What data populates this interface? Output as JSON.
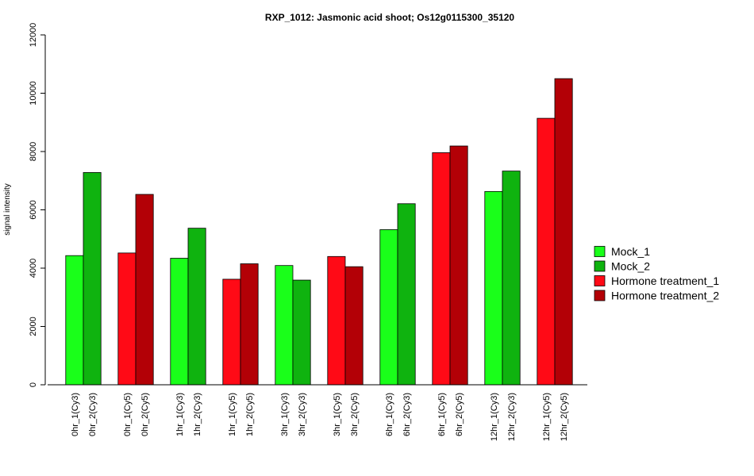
{
  "chart_data": {
    "type": "bar",
    "title": "RXP_1012: Jasmonic acid shoot; Os12g0115300_35120",
    "xlabel": "",
    "ylabel": "signal intensity",
    "ylim": [
      0,
      12000
    ],
    "yticks": [
      0,
      2000,
      4000,
      6000,
      8000,
      10000,
      12000
    ],
    "grid": false,
    "legend_position": "right",
    "bars": [
      {
        "label": "0hr_1(Cy3)",
        "value": 4430,
        "series": "Mock_1"
      },
      {
        "label": "0hr_2(Cy3)",
        "value": 7280,
        "series": "Mock_2"
      },
      {
        "label": "0hr_1(Cy5)",
        "value": 4520,
        "series": "Hormone treatment_1"
      },
      {
        "label": "0hr_2(Cy5)",
        "value": 6530,
        "series": "Hormone treatment_2"
      },
      {
        "label": "1hr_1(Cy3)",
        "value": 4340,
        "series": "Mock_1"
      },
      {
        "label": "1hr_2(Cy3)",
        "value": 5370,
        "series": "Mock_2"
      },
      {
        "label": "1hr_1(Cy5)",
        "value": 3620,
        "series": "Hormone treatment_1"
      },
      {
        "label": "1hr_2(Cy5)",
        "value": 4150,
        "series": "Hormone treatment_2"
      },
      {
        "label": "3hr_1(Cy3)",
        "value": 4090,
        "series": "Mock_1"
      },
      {
        "label": "3hr_2(Cy3)",
        "value": 3590,
        "series": "Mock_2"
      },
      {
        "label": "3hr_1(Cy5)",
        "value": 4400,
        "series": "Hormone treatment_1"
      },
      {
        "label": "3hr_2(Cy5)",
        "value": 4050,
        "series": "Hormone treatment_2"
      },
      {
        "label": "6hr_1(Cy3)",
        "value": 5320,
        "series": "Mock_1"
      },
      {
        "label": "6hr_2(Cy3)",
        "value": 6210,
        "series": "Mock_2"
      },
      {
        "label": "6hr_1(Cy5)",
        "value": 7960,
        "series": "Hormone treatment_1"
      },
      {
        "label": "6hr_2(Cy5)",
        "value": 8190,
        "series": "Hormone treatment_2"
      },
      {
        "label": "12hr_1(Cy3)",
        "value": 6630,
        "series": "Mock_1"
      },
      {
        "label": "12hr_2(Cy3)",
        "value": 7330,
        "series": "Mock_2"
      },
      {
        "label": "12hr_1(Cy5)",
        "value": 9140,
        "series": "Hormone treatment_1"
      },
      {
        "label": "12hr_2(Cy5)",
        "value": 10500,
        "series": "Hormone treatment_2"
      }
    ],
    "legend": [
      {
        "name": "Mock_1",
        "color": "#1aff1a"
      },
      {
        "name": "Mock_2",
        "color": "#0fb30f"
      },
      {
        "name": "Hormone treatment_1",
        "color": "#ff0a16"
      },
      {
        "name": "Hormone treatment_2",
        "color": "#b30006"
      }
    ]
  }
}
